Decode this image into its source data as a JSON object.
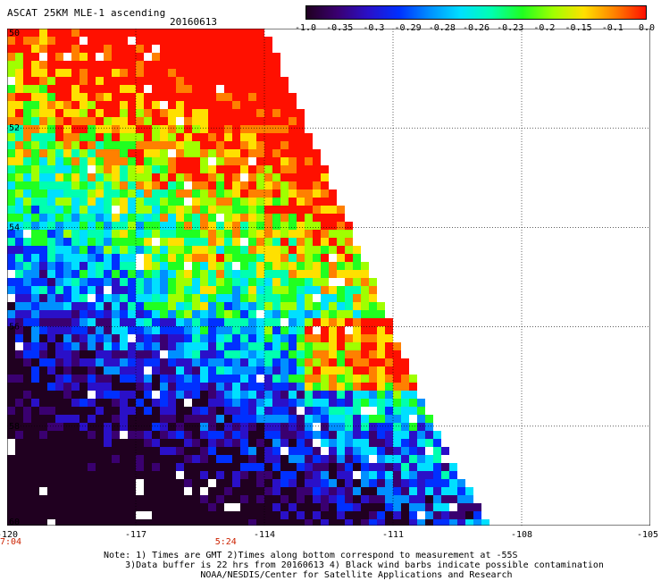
{
  "header": {
    "title": "ASCAT 25KM MLE-1 ascending",
    "date": "20160613"
  },
  "colorbar": {
    "labels": [
      "-1.0",
      "-0.35",
      "-0.3",
      "-0.29",
      "-0.28",
      "-0.26",
      "-0.23",
      "-0.2",
      "-0.15",
      "-0.1",
      "0.0"
    ],
    "colors": [
      "#200020",
      "#3a0070",
      "#2a10c8",
      "#0030ff",
      "#0090ff",
      "#00e0ff",
      "#00ffb0",
      "#20ff20",
      "#a0ff00",
      "#ffe000",
      "#ff8000",
      "#ff1000"
    ]
  },
  "map": {
    "lon_range": [
      -120,
      -105
    ],
    "lat_range": [
      -60,
      -50
    ],
    "lon_ticks": [
      "-120",
      "-117",
      "-114",
      "-111",
      "-108",
      "-105"
    ],
    "lat_ticks": [
      "-50",
      "-52",
      "-54",
      "-56",
      "-58",
      "-60"
    ],
    "time_labels": [
      {
        "lon": -120,
        "text": "7:04"
      },
      {
        "lon": -114.9,
        "text": "5:24"
      }
    ],
    "swath_edge": [
      [
        -114,
        -50
      ],
      [
        -113,
        -52
      ],
      [
        -111.5,
        -55
      ],
      [
        -110.3,
        -57.5
      ],
      [
        -108.8,
        -60
      ]
    ]
  },
  "notes": {
    "line1": "Note: 1) Times are GMT 2)Times along bottom correspond to measurement at -55S",
    "line2": "3)Data buffer is 22 hrs from 20160613 4) Black wind barbs indicate possible contamination",
    "line3": "NOAA/NESDIS/Center for Satellite Applications and Research"
  }
}
